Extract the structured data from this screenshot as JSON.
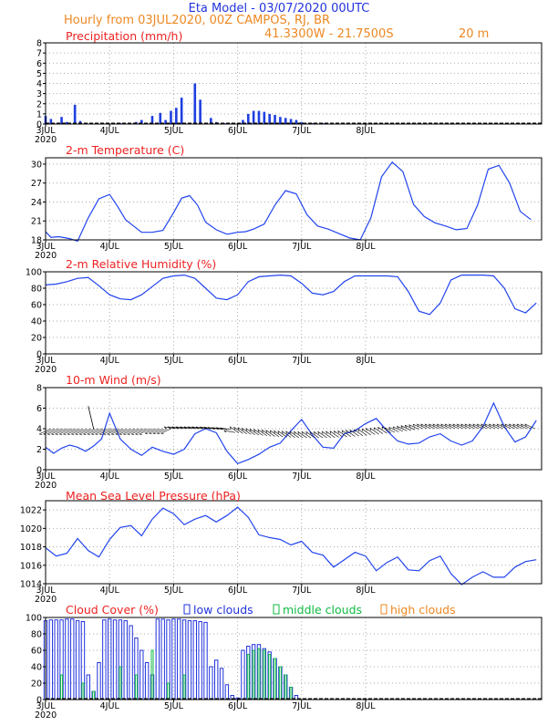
{
  "header": {
    "title": "Eta Model - 03/07/2020 00UTC",
    "subtitle": "Hourly from 03JUL2020, 00Z  CAMPOS, RJ, BR",
    "coords": "41.3300W - 21.7500S",
    "elevation": "20  m"
  },
  "colors": {
    "title": "#2233dd",
    "subtitle": "#ee8822",
    "panel_title": "#ee2222",
    "line": "#2244ee",
    "bar": "#1f3fe0",
    "low": "#2233dd",
    "mid": "#11bb44",
    "high": "#ee8822",
    "wind": "#000000"
  },
  "x_labels": [
    "3JUL",
    "4JUL",
    "5JUL",
    "6JUL",
    "7JUL",
    "8JUL"
  ],
  "year_label": "2020",
  "chart_data": [
    {
      "id": "precip",
      "type": "bar",
      "title": "Precipitation (mm/h)",
      "ylim": [
        0,
        8
      ],
      "yticks": [
        0,
        1,
        2,
        3,
        4,
        5,
        6,
        7,
        8
      ],
      "hours": [
        0,
        2,
        6,
        8,
        11,
        13,
        23,
        28,
        34,
        36,
        38,
        40,
        43,
        45,
        47,
        49,
        51,
        56,
        58,
        62,
        64,
        67,
        70,
        73,
        74,
        76,
        78,
        80,
        82,
        84,
        86,
        88,
        90,
        92,
        94,
        96,
        100,
        104
      ],
      "values": [
        0.8,
        0.5,
        0.7,
        0.2,
        1.9,
        0.3,
        0.1,
        0.1,
        0.2,
        0.4,
        0.1,
        0.8,
        1.1,
        0.4,
        1.3,
        1.6,
        2.6,
        4.0,
        2.4,
        0.6,
        0.2,
        0.1,
        0.1,
        0.1,
        0.4,
        1.0,
        1.3,
        1.3,
        1.2,
        1.0,
        0.9,
        0.7,
        0.6,
        0.5,
        0.4,
        0.2,
        0.1,
        0.1
      ]
    },
    {
      "id": "temp",
      "type": "line",
      "title": "2-m Temperature (C)",
      "ylim": [
        18,
        31
      ],
      "yticks": [
        18,
        21,
        24,
        27,
        30
      ],
      "x": [
        0,
        2,
        5,
        9,
        12,
        16,
        20,
        24,
        27,
        30,
        33,
        36,
        40,
        44,
        48,
        51,
        54,
        57,
        60,
        64,
        68,
        72,
        75,
        78,
        82,
        86,
        90,
        94,
        98,
        102,
        106,
        110,
        114,
        118,
        122,
        126,
        130,
        134,
        138,
        142,
        146,
        150,
        154,
        158,
        162,
        166,
        170,
        174,
        178,
        182
      ],
      "values": [
        19.3,
        18.4,
        18.5,
        18.2,
        17.8,
        21.5,
        24.5,
        25.2,
        23.3,
        21.2,
        20.2,
        19.2,
        19.2,
        19.5,
        22.3,
        24.6,
        25.0,
        23.5,
        20.8,
        19.6,
        18.9,
        19.2,
        19.3,
        19.7,
        20.5,
        23.5,
        25.8,
        25.3,
        22.0,
        20.2,
        19.7,
        19.0,
        18.3,
        18.0,
        21.5,
        28.0,
        30.3,
        28.8,
        23.6,
        21.7,
        20.7,
        20.2,
        19.6,
        19.8,
        23.5,
        29.2,
        29.8,
        27.0,
        22.5,
        21.2
      ]
    },
    {
      "id": "rh",
      "type": "line",
      "title": "2-m Relative Humidity (%)",
      "ylim": [
        0,
        100
      ],
      "yticks": [
        0,
        20,
        40,
        60,
        80,
        100
      ],
      "x": [
        0,
        4,
        8,
        12,
        16,
        20,
        24,
        28,
        32,
        36,
        40,
        44,
        48,
        52,
        56,
        60,
        64,
        68,
        72,
        76,
        80,
        84,
        88,
        92,
        96,
        100,
        104,
        108,
        112,
        116,
        120,
        124,
        128,
        132,
        136,
        140,
        144,
        148,
        152,
        156,
        160,
        164,
        168,
        172,
        176,
        180,
        184
      ],
      "values": [
        84,
        85,
        88,
        92,
        93,
        83,
        72,
        67,
        66,
        72,
        82,
        92,
        95,
        96,
        92,
        80,
        68,
        66,
        72,
        88,
        94,
        95,
        96,
        95,
        86,
        74,
        72,
        76,
        88,
        95,
        95,
        95,
        95,
        94,
        76,
        52,
        48,
        62,
        90,
        96,
        96,
        96,
        95,
        80,
        55,
        50,
        62
      ],
      "ylabel_unit": "%"
    },
    {
      "id": "wind",
      "type": "line",
      "title": "10-m Wind (m/s)",
      "ylim": [
        0,
        8
      ],
      "yticks": [
        0,
        2,
        4,
        6,
        8
      ],
      "x": [
        0,
        3,
        6,
        9,
        12,
        15,
        18,
        21,
        24,
        28,
        32,
        36,
        40,
        44,
        48,
        52,
        56,
        60,
        64,
        68,
        72,
        76,
        80,
        84,
        88,
        92,
        96,
        100,
        104,
        108,
        112,
        116,
        120,
        124,
        128,
        132,
        136,
        140,
        144,
        148,
        152,
        156,
        160,
        164,
        168,
        172,
        176,
        180,
        184
      ],
      "values": [
        2.2,
        1.6,
        2.1,
        2.4,
        2.2,
        1.8,
        2.3,
        3.0,
        5.5,
        3.0,
        2.0,
        1.4,
        2.2,
        1.8,
        1.5,
        2.0,
        3.5,
        4.0,
        3.6,
        1.8,
        0.6,
        1.0,
        1.5,
        2.2,
        2.6,
        3.8,
        4.9,
        3.4,
        2.2,
        2.1,
        3.5,
        3.8,
        4.5,
        5.0,
        3.8,
        2.8,
        2.5,
        2.6,
        3.2,
        3.5,
        2.8,
        2.4,
        2.8,
        4.2,
        6.5,
        4.2,
        2.7,
        3.2,
        4.8
      ]
    },
    {
      "id": "mslp",
      "type": "line",
      "title": "Mean Sea Level Pressure (hPa)",
      "ylim": [
        1014,
        1023
      ],
      "yticks": [
        1014,
        1016,
        1018,
        1020,
        1022
      ],
      "x": [
        0,
        4,
        8,
        12,
        16,
        20,
        24,
        28,
        32,
        36,
        40,
        44,
        48,
        52,
        56,
        60,
        64,
        68,
        72,
        76,
        80,
        84,
        88,
        92,
        96,
        100,
        104,
        108,
        112,
        116,
        120,
        124,
        128,
        132,
        136,
        140,
        144,
        148,
        152,
        156,
        160,
        164,
        168,
        172,
        176,
        180,
        184
      ],
      "values": [
        1017.9,
        1017.0,
        1017.3,
        1018.9,
        1017.6,
        1016.9,
        1018.8,
        1020.1,
        1020.3,
        1019.2,
        1021.0,
        1022.2,
        1021.6,
        1020.4,
        1021.0,
        1021.4,
        1020.7,
        1021.4,
        1022.3,
        1021.2,
        1019.3,
        1019.0,
        1018.8,
        1018.2,
        1018.6,
        1017.4,
        1017.1,
        1015.8,
        1016.6,
        1017.4,
        1017.0,
        1015.4,
        1016.3,
        1016.9,
        1015.5,
        1015.4,
        1016.5,
        1017.0,
        1015.1,
        1013.9,
        1014.7,
        1015.3,
        1014.7,
        1014.7,
        1015.8,
        1016.4,
        1016.6
      ]
    },
    {
      "id": "cloud",
      "type": "bar",
      "title": "Cloud Cover (%)",
      "ylim": [
        0,
        100
      ],
      "yticks": [
        0,
        20,
        40,
        60,
        80,
        100
      ],
      "legend": [
        "low clouds",
        "middle clouds",
        "high clouds"
      ],
      "low_hours": [
        0,
        2,
        4,
        6,
        8,
        10,
        12,
        14,
        16,
        18,
        20,
        22,
        24,
        26,
        28,
        30,
        32,
        34,
        36,
        38,
        40,
        42,
        44,
        46,
        48,
        50,
        52,
        54,
        56,
        58,
        60,
        62,
        64,
        66,
        68,
        70,
        72,
        74,
        76,
        78,
        80,
        82,
        84,
        86,
        88,
        90,
        92,
        94
      ],
      "low_values": [
        96,
        97,
        97,
        97,
        98,
        98,
        96,
        95,
        30,
        10,
        45,
        97,
        98,
        97,
        97,
        96,
        90,
        75,
        60,
        45,
        30,
        98,
        98,
        97,
        98,
        98,
        97,
        96,
        96,
        95,
        94,
        40,
        48,
        38,
        18,
        5,
        2,
        60,
        65,
        67,
        67,
        62,
        58,
        50,
        40,
        30,
        15,
        5
      ],
      "mid_hours": [
        6,
        14,
        18,
        28,
        34,
        40,
        46,
        52,
        76,
        78,
        80,
        82,
        84,
        86,
        88,
        90,
        92
      ],
      "mid_values": [
        30,
        20,
        10,
        40,
        30,
        60,
        20,
        30,
        55,
        60,
        62,
        60,
        55,
        50,
        40,
        30,
        15
      ],
      "high_hours": [],
      "high_values": []
    }
  ]
}
